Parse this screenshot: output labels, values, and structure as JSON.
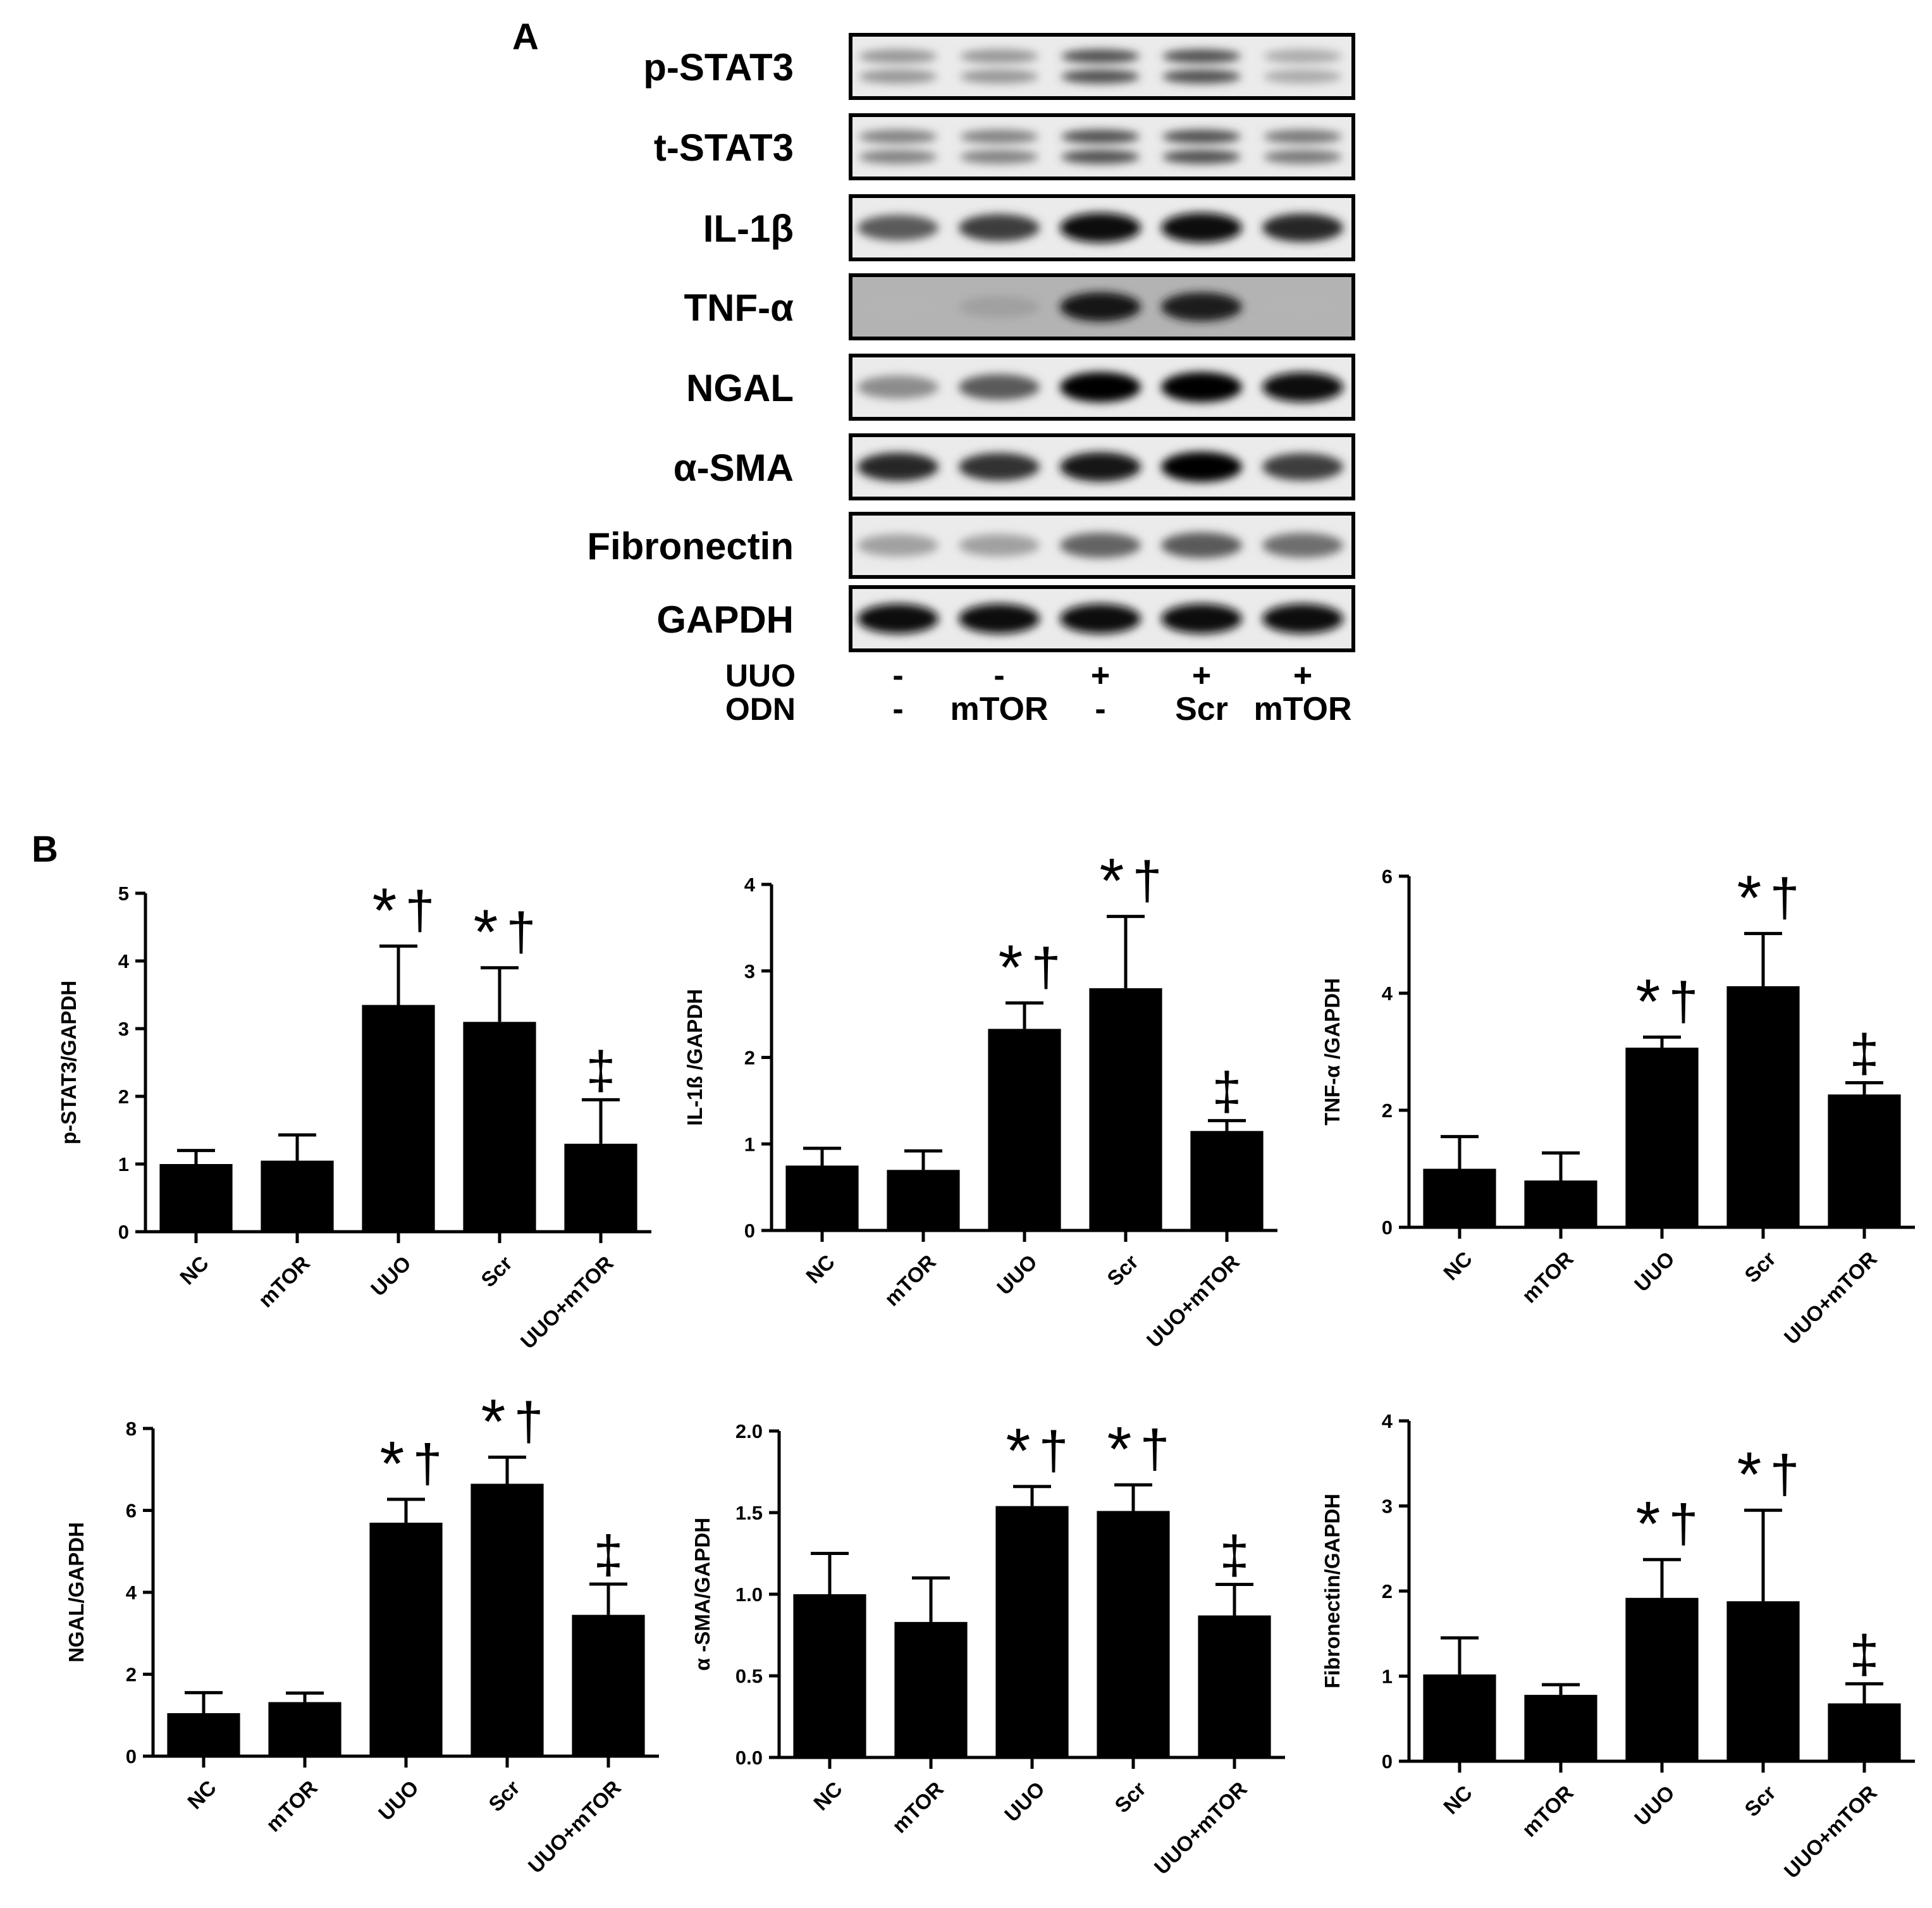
{
  "panel_a": {
    "label": "A",
    "blots": [
      {
        "name": "p-STAT3",
        "intensity": [
          0.25,
          0.25,
          0.6,
          0.6,
          0.15
        ],
        "bands": 2
      },
      {
        "name": "t-STAT3",
        "intensity": [
          0.35,
          0.35,
          0.6,
          0.6,
          0.4
        ],
        "bands": 2
      },
      {
        "name": "IL-1β",
        "intensity": [
          0.55,
          0.7,
          0.95,
          0.95,
          0.8
        ],
        "bands": 1
      },
      {
        "name": "TNF-α",
        "intensity": [
          0.1,
          0.2,
          0.9,
          0.85,
          0.1
        ],
        "bands": 1,
        "background": 0.3
      },
      {
        "name": "NGAL",
        "intensity": [
          0.3,
          0.55,
          1.0,
          1.0,
          0.95
        ],
        "bands": 1
      },
      {
        "name": "α-SMA",
        "intensity": [
          0.8,
          0.75,
          0.9,
          1.0,
          0.7
        ],
        "bands": 1
      },
      {
        "name": "Fibronectin",
        "intensity": [
          0.2,
          0.2,
          0.5,
          0.55,
          0.45
        ],
        "bands": 1
      },
      {
        "name": "GAPDH",
        "intensity": [
          0.95,
          0.95,
          0.95,
          0.95,
          0.95
        ],
        "bands": 1
      }
    ],
    "conditions": [
      {
        "row": "UUO",
        "values": [
          "-",
          "-",
          "+",
          "+",
          "+"
        ]
      },
      {
        "row": "ODN",
        "values": [
          "-",
          "mTOR",
          "-",
          "Scr",
          "mTOR"
        ]
      }
    ]
  },
  "panel_b": {
    "label": "B"
  },
  "chart_data": [
    {
      "type": "bar",
      "ylabel": "p-STAT3/GAPDH",
      "categories": [
        "NC",
        "mTOR",
        "UUO",
        "Scr",
        "UUO+mTOR"
      ],
      "values": [
        1.0,
        1.05,
        3.35,
        3.1,
        1.3
      ],
      "errors": [
        0.2,
        0.38,
        0.87,
        0.8,
        0.65
      ],
      "ylim": [
        0,
        5
      ],
      "yticks": [
        "0",
        "1",
        "2",
        "3",
        "4",
        "5"
      ],
      "annotations": [
        "",
        "",
        "*†",
        "*†",
        "‡"
      ]
    },
    {
      "type": "bar",
      "ylabel": "IL-1ß  /GAPDH",
      "categories": [
        "NC",
        "mTOR",
        "UUO",
        "Scr",
        "UUO+mTOR"
      ],
      "values": [
        0.75,
        0.7,
        2.33,
        2.8,
        1.15
      ],
      "errors": [
        0.2,
        0.22,
        0.3,
        0.83,
        0.12
      ],
      "ylim": [
        0,
        4
      ],
      "yticks": [
        "0",
        "1",
        "2",
        "3",
        "4"
      ],
      "annotations": [
        "",
        "",
        "*†",
        "*†",
        "‡"
      ]
    },
    {
      "type": "bar",
      "ylabel": "TNF-α  /GAPDH",
      "categories": [
        "NC",
        "mTOR",
        "UUO",
        "Scr",
        "UUO+mTOR"
      ],
      "values": [
        1.0,
        0.8,
        3.07,
        4.12,
        2.27
      ],
      "errors": [
        0.55,
        0.47,
        0.18,
        0.9,
        0.2
      ],
      "ylim": [
        0,
        6
      ],
      "yticks": [
        "0",
        "2",
        "4",
        "6"
      ],
      "annotations": [
        "",
        "",
        "*†",
        "*†",
        "‡"
      ]
    },
    {
      "type": "bar",
      "ylabel": "NGAL/GAPDH",
      "categories": [
        "NC",
        "mTOR",
        "UUO",
        "Scr",
        "UUO+mTOR"
      ],
      "values": [
        1.05,
        1.32,
        5.7,
        6.65,
        3.45
      ],
      "errors": [
        0.5,
        0.22,
        0.57,
        0.65,
        0.75
      ],
      "ylim": [
        0,
        8
      ],
      "yticks": [
        "0",
        "2",
        "4",
        "6",
        "8"
      ],
      "annotations": [
        "",
        "",
        "*†",
        "*†",
        "‡"
      ]
    },
    {
      "type": "bar",
      "ylabel": "α -SMA/GAPDH",
      "categories": [
        "NC",
        "mTOR",
        "UUO",
        "Scr",
        "UUO+mTOR"
      ],
      "values": [
        1.0,
        0.83,
        1.54,
        1.51,
        0.87
      ],
      "errors": [
        0.25,
        0.27,
        0.12,
        0.16,
        0.19
      ],
      "ylim": [
        0,
        2
      ],
      "yticks": [
        "0.0",
        "0.5",
        "1.0",
        "1.5",
        "2.0"
      ],
      "annotations": [
        "",
        "",
        "*†",
        "*†",
        "‡"
      ]
    },
    {
      "type": "bar",
      "ylabel": "Fibronectin/GAPDH",
      "categories": [
        "NC",
        "mTOR",
        "UUO",
        "Scr",
        "UUO+mTOR"
      ],
      "values": [
        1.02,
        0.78,
        1.92,
        1.88,
        0.68
      ],
      "errors": [
        0.43,
        0.12,
        0.45,
        1.07,
        0.23
      ],
      "ylim": [
        0,
        4
      ],
      "yticks": [
        "0",
        "1",
        "2",
        "3",
        "4"
      ],
      "annotations": [
        "",
        "",
        "*†",
        "*†",
        "‡"
      ]
    }
  ]
}
